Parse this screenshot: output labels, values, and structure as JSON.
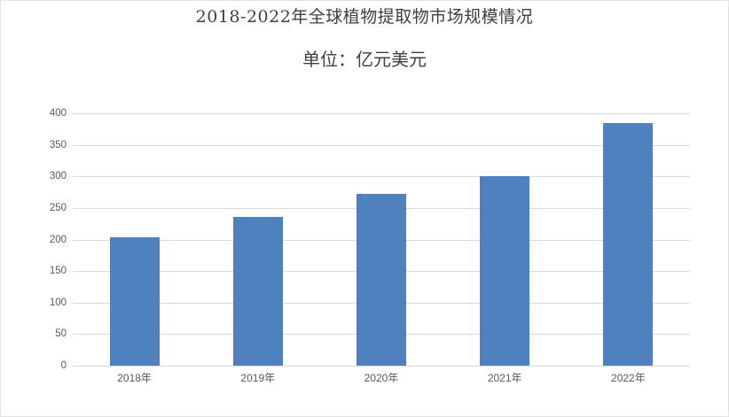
{
  "chart": {
    "title": "2018-2022年全球植物提取物市场规模情况",
    "subtitle": "单位：亿元美元"
  },
  "chart_data": {
    "type": "bar",
    "title": "2018-2022年全球植物提取物市场规模情况",
    "subtitle": "单位：亿元美元",
    "categories": [
      "2018年",
      "2019年",
      "2020年",
      "2021年",
      "2022年"
    ],
    "values": [
      203,
      236,
      273,
      300,
      385
    ],
    "xlabel": "",
    "ylabel": "",
    "ylim": [
      0,
      400
    ],
    "yticks": [
      0,
      50,
      100,
      150,
      200,
      250,
      300,
      350,
      400
    ],
    "grid": true,
    "legend": false,
    "colors": {
      "bar": "#4e81bd",
      "gridline": "#d9d9d9",
      "axis_labels": "#595959",
      "title_text": "#3f3f3f"
    }
  }
}
